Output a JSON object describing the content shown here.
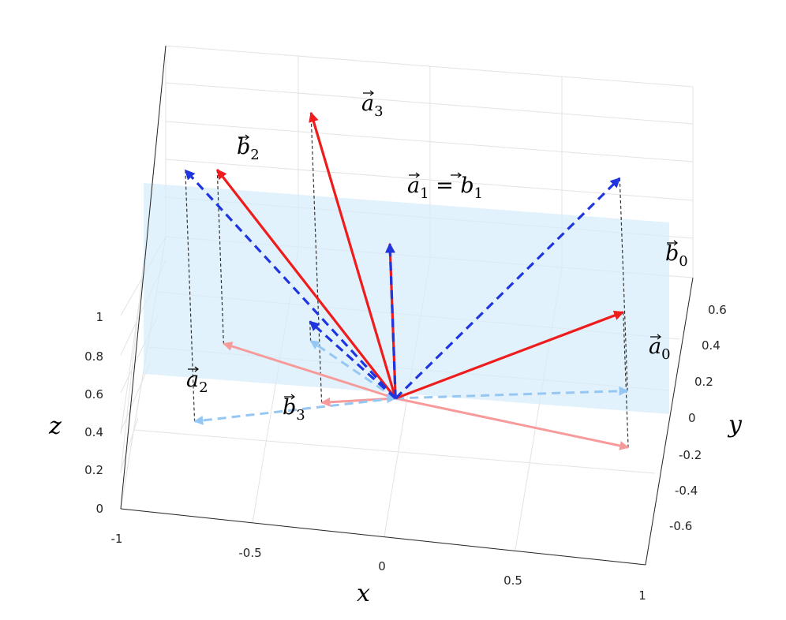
{
  "chart_data": {
    "type": "3d-vector-plot",
    "axes": {
      "x": {
        "label": "x",
        "ticks": [
          "-1",
          "-0.5",
          "0",
          "0.5",
          "1"
        ],
        "range": [
          -1,
          1
        ]
      },
      "y": {
        "label": "y",
        "ticks": [
          "0.6",
          "0.4",
          "0.2",
          "0",
          "-0.2",
          "-0.4",
          "-0.6"
        ],
        "range": [
          -0.7,
          0.7
        ]
      },
      "z": {
        "label": "z",
        "ticks": [
          "1",
          "0.8",
          "0.6",
          "0.4",
          "0.2",
          "0"
        ],
        "range": [
          0,
          1
        ]
      }
    },
    "grid": true,
    "plane": {
      "description": "horizontal plane at z = 0.6",
      "z": 0.6,
      "color": "#d6ecfb"
    },
    "origin": [
      0,
      0,
      0.6
    ],
    "colors": {
      "a_vectors": "#ee1c1c",
      "a_projection": "#f79a9a",
      "b_vectors": "#1e35e0",
      "b_projection": "#95c7f5",
      "guide": "#333333"
    },
    "vector_labels": {
      "a0": {
        "base": "a",
        "sub": "0"
      },
      "a1b1": {
        "base": "a",
        "sub": "1",
        "rhs_base": "b",
        "rhs_sub": "1"
      },
      "a2": {
        "base": "a",
        "sub": "2"
      },
      "a3": {
        "base": "a",
        "sub": "3"
      },
      "b0": {
        "base": "b",
        "sub": "0"
      },
      "b2": {
        "base": "b",
        "sub": "2"
      },
      "b3": {
        "base": "b",
        "sub": "3"
      }
    },
    "series": [
      {
        "id": "a0",
        "family": "a",
        "style": "solid",
        "tip": [
          0.95,
          -0.3,
          0.95
        ]
      },
      {
        "id": "a1",
        "family": "a",
        "style": "solid",
        "tip": [
          0,
          0,
          1.0
        ]
      },
      {
        "id": "a2",
        "family": "a",
        "style": "solid",
        "tip": [
          -0.75,
          0.45,
          1.05
        ]
      },
      {
        "id": "a3",
        "family": "a",
        "style": "solid",
        "tip": [
          -0.25,
          -0.15,
          1.35
        ]
      },
      {
        "id": "b0",
        "family": "b",
        "style": "dashed",
        "tip": [
          0.8,
          0.4,
          1.15
        ]
      },
      {
        "id": "b1",
        "family": "b",
        "style": "dashed",
        "tip": [
          0,
          0,
          1.0
        ]
      },
      {
        "id": "b2",
        "family": "b",
        "style": "dashed",
        "tip": [
          -0.65,
          -0.55,
          1.25
        ]
      },
      {
        "id": "b3",
        "family": "b",
        "style": "dashed",
        "tip": [
          -0.45,
          0.6,
          0.65
        ]
      }
    ]
  }
}
